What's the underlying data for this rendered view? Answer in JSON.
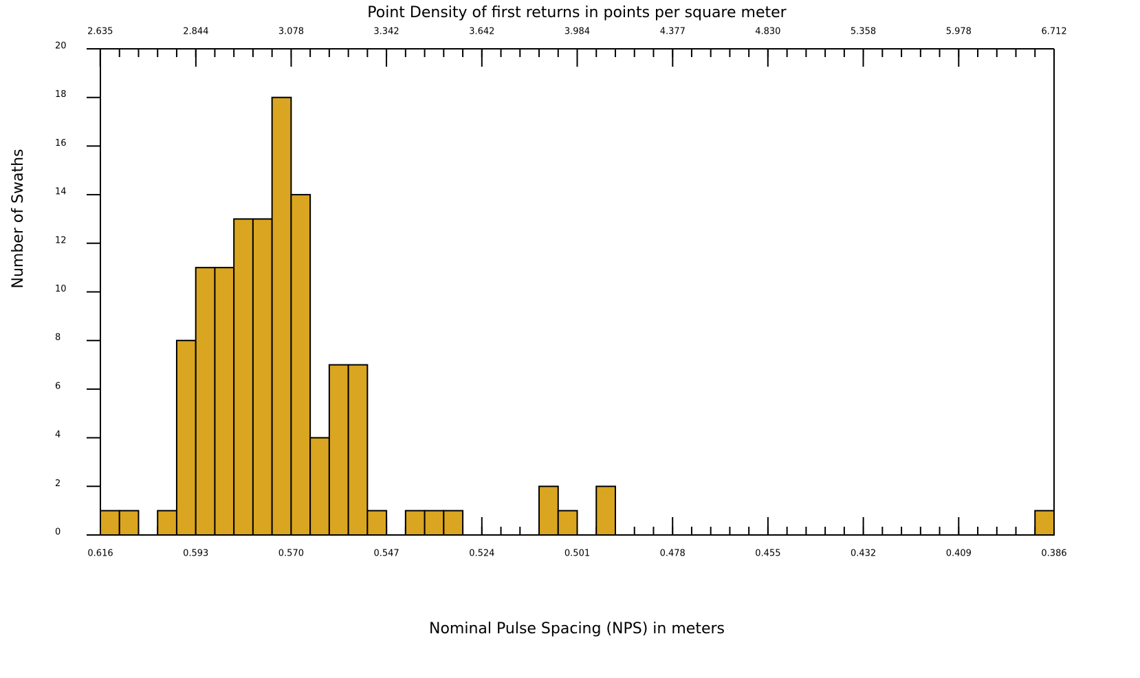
{
  "chart_data": {
    "type": "histogram",
    "title": "Point Density of first returns in points per square meter",
    "x_label": "Nominal Pulse Spacing (NPS) in meters",
    "y_label": "Number of Swaths",
    "color": "#DAA520",
    "bins": [
      0.616,
      0.6114,
      0.6068,
      0.6022,
      0.5976,
      0.593,
      0.5884,
      0.5838,
      0.5792,
      0.5746,
      0.57,
      0.5654,
      0.5608,
      0.5562,
      0.5516,
      0.547,
      0.5424,
      0.5378,
      0.5332,
      0.5286,
      0.524,
      0.5194,
      0.5148,
      0.5102,
      0.5056,
      0.501,
      0.4964,
      0.4918,
      0.4872,
      0.4826,
      0.478,
      0.4734,
      0.4688,
      0.4642,
      0.4596,
      0.455,
      0.4504,
      0.4458,
      0.4412,
      0.4366,
      0.432,
      0.4274,
      0.4228,
      0.4182,
      0.4136,
      0.409,
      0.4044,
      0.3998,
      0.3952,
      0.3906,
      0.386
    ],
    "values": [
      1,
      1,
      0,
      1,
      8,
      11,
      11,
      13,
      13,
      18,
      14,
      4,
      7,
      7,
      1,
      0,
      1,
      1,
      1,
      0,
      0,
      0,
      0,
      2,
      1,
      0,
      2,
      0,
      0,
      0,
      0,
      0,
      0,
      0,
      0,
      0,
      0,
      0,
      0,
      0,
      0,
      0,
      0,
      0,
      0,
      0,
      0,
      0,
      0,
      1
    ],
    "xlim": [
      0.616,
      0.386
    ],
    "xticks": [
      0.616,
      0.593,
      {
        "value": 0.57,
        "label": "0.570"
      },
      0.547,
      0.524,
      0.501,
      0.478,
      0.455,
      0.432,
      0.409,
      0.386
    ],
    "x2ticks": [
      2.635,
      2.844,
      3.078,
      3.342,
      3.642,
      3.984,
      4.377,
      {
        "value": 4.83,
        "label": "4.830"
      },
      5.358,
      5.978,
      6.712
    ],
    "ylim": [
      0,
      20
    ],
    "yticks": [
      0,
      2,
      4,
      6,
      8,
      10,
      12,
      14,
      16,
      18,
      20
    ]
  }
}
